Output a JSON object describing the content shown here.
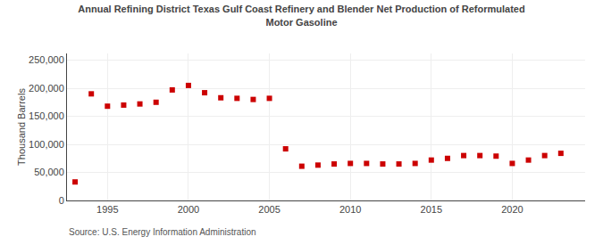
{
  "chart_data": {
    "type": "scatter",
    "title": "Annual Refining District Texas Gulf Coast Refinery and Blender Net Production of Reformulated\nMotor Gasoline",
    "y_label": "Thousand Barrels",
    "annotations": [
      "Source: U.S. Energy Information Administration"
    ],
    "x": [
      1993,
      1994,
      1995,
      1996,
      1997,
      1998,
      1999,
      2000,
      2001,
      2002,
      2003,
      2004,
      2005,
      2006,
      2007,
      2008,
      2009,
      2010,
      2011,
      2012,
      2013,
      2014,
      2015,
      2016,
      2017,
      2018,
      2019,
      2020,
      2021,
      2022,
      2023
    ],
    "values": [
      33000,
      190000,
      168000,
      170000,
      172000,
      175000,
      197000,
      205000,
      192000,
      183000,
      182000,
      180000,
      182000,
      92000,
      61000,
      63000,
      65000,
      66000,
      66000,
      65000,
      65000,
      66000,
      72000,
      75000,
      80000,
      80000,
      79000,
      66000,
      72000,
      80000,
      84000
    ],
    "color": "#cc0000",
    "marker": "square",
    "xlim": [
      1992.5,
      2024.5
    ],
    "ylim": [
      0,
      262000
    ],
    "xticks": [
      1995,
      2000,
      2005,
      2010,
      2015,
      2020
    ],
    "yticks": [
      0,
      {
        "value": 50000,
        "label": "50,000"
      },
      {
        "value": 100000,
        "label": "100,000"
      },
      {
        "value": 150000,
        "label": "150,000"
      },
      {
        "value": 200000,
        "label": "200,000"
      },
      {
        "value": 250000,
        "label": "250,000"
      }
    ],
    "grid": true
  }
}
